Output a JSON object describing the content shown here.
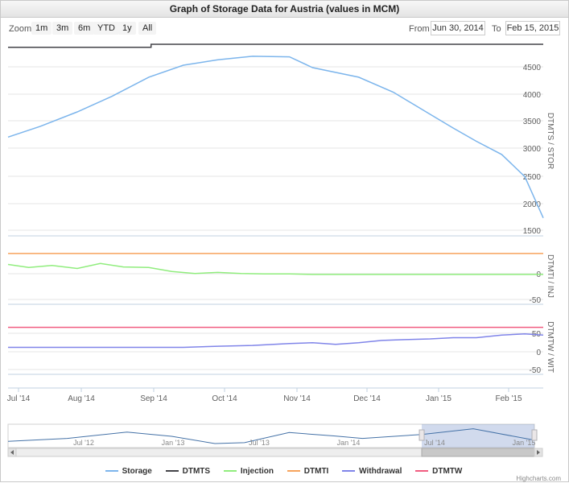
{
  "title": "Graph of Storage Data for Austria (values in MCM)",
  "zoom": {
    "label": "Zoom",
    "buttons": [
      "1m",
      "3m",
      "6m",
      "YTD",
      "1y",
      "All"
    ]
  },
  "range": {
    "from_label": "From",
    "from_value": "Jun 30, 2014",
    "to_label": "To",
    "to_value": "Feb 15, 2015"
  },
  "credits": "Highcharts.com",
  "colors": {
    "storage": "#7cb5ec",
    "dtmts": "#434348",
    "injection": "#90ed7d",
    "dtmti": "#f7a35c",
    "withdrawal": "#8085e9",
    "dtmtw": "#f15c80"
  },
  "chart_data": {
    "type": "line",
    "x_axis": {
      "ticks": [
        "Jul '14",
        "Aug '14",
        "Sep '14",
        "Oct '14",
        "Nov '14",
        "Dec '14",
        "Jan '15",
        "Feb '15"
      ],
      "range": [
        "2014-07-01",
        "2015-02-18"
      ]
    },
    "panes": [
      {
        "axis_label": "DTMTS / STOR",
        "ylim": [
          1500,
          4700
        ],
        "ticks": [
          "1500",
          "2000",
          "2500",
          "3000",
          "3500",
          "4000",
          "4500"
        ],
        "series": [
          {
            "name": "Storage",
            "color": "#7cb5ec",
            "points": [
              [
                "2014-07-01",
                3150
              ],
              [
                "2014-07-15",
                3330
              ],
              [
                "2014-07-31",
                3570
              ],
              [
                "2014-08-15",
                3830
              ],
              [
                "2014-08-31",
                4150
              ],
              [
                "2014-09-15",
                4350
              ],
              [
                "2014-09-30",
                4440
              ],
              [
                "2014-10-15",
                4500
              ],
              [
                "2014-10-31",
                4490
              ],
              [
                "2014-11-10",
                4310
              ],
              [
                "2014-11-30",
                4150
              ],
              [
                "2014-12-15",
                3900
              ],
              [
                "2014-12-31",
                3530
              ],
              [
                "2015-01-10",
                3300
              ],
              [
                "2015-01-20",
                3080
              ],
              [
                "2015-01-31",
                2860
              ],
              [
                "2015-02-10",
                2490
              ],
              [
                "2015-02-18",
                1800
              ]
            ]
          },
          {
            "name": "DTMTS",
            "color": "#434348",
            "points": [
              [
                "2014-07-01",
                4650
              ],
              [
                "2014-09-01",
                4650
              ],
              [
                "2014-09-01",
                4700
              ],
              [
                "2015-02-18",
                4700
              ]
            ]
          }
        ]
      },
      {
        "axis_label": "DTMTI / INJ",
        "ylim": [
          -60,
          50
        ],
        "ticks": [
          "-50",
          "0"
        ],
        "series": [
          {
            "name": "Injection",
            "color": "#90ed7d",
            "points": [
              [
                "2014-07-01",
                20
              ],
              [
                "2014-07-10",
                14
              ],
              [
                "2014-07-20",
                18
              ],
              [
                "2014-07-31",
                12
              ],
              [
                "2014-08-10",
                22
              ],
              [
                "2014-08-20",
                15
              ],
              [
                "2014-08-31",
                14
              ],
              [
                "2014-09-10",
                6
              ],
              [
                "2014-09-20",
                2
              ],
              [
                "2014-09-30",
                4
              ],
              [
                "2014-10-10",
                2
              ],
              [
                "2014-10-20",
                1
              ],
              [
                "2014-10-31",
                1
              ],
              [
                "2014-11-10",
                0
              ],
              [
                "2014-11-30",
                0
              ],
              [
                "2014-12-31",
                0
              ],
              [
                "2015-01-31",
                0
              ],
              [
                "2015-02-10",
                0
              ],
              [
                "2015-02-18",
                0
              ]
            ]
          },
          {
            "name": "DTMTI",
            "color": "#f7a35c",
            "points": [
              [
                "2014-07-01",
                42
              ],
              [
                "2015-02-18",
                42
              ]
            ]
          }
        ]
      },
      {
        "axis_label": "DTMTW / WIT",
        "ylim": [
          -70,
          70
        ],
        "ticks": [
          "-50",
          "0",
          "50"
        ],
        "series": [
          {
            "name": "Withdrawal",
            "color": "#8085e9",
            "points": [
              [
                "2014-07-01",
                0
              ],
              [
                "2014-08-15",
                0
              ],
              [
                "2014-09-15",
                0
              ],
              [
                "2014-09-30",
                3
              ],
              [
                "2014-10-15",
                5
              ],
              [
                "2014-10-31",
                10
              ],
              [
                "2014-11-10",
                12
              ],
              [
                "2014-11-20",
                8
              ],
              [
                "2014-11-30",
                12
              ],
              [
                "2014-12-10",
                18
              ],
              [
                "2014-12-20",
                20
              ],
              [
                "2014-12-31",
                22
              ],
              [
                "2015-01-10",
                25
              ],
              [
                "2015-01-20",
                25
              ],
              [
                "2015-01-31",
                32
              ],
              [
                "2015-02-10",
                35
              ],
              [
                "2015-02-18",
                32
              ]
            ]
          },
          {
            "name": "DTMTW",
            "color": "#f15c80",
            "points": [
              [
                "2014-07-01",
                52
              ],
              [
                "2015-02-18",
                52
              ]
            ]
          }
        ]
      }
    ],
    "navigator": {
      "ticks": [
        "Jul '12",
        "Jan '13",
        "Jul '13",
        "Jan '14",
        "Jul '14",
        "Jan '15"
      ],
      "range": [
        "2012-03-01",
        "2015-02-18"
      ],
      "selected": [
        "2014-07-01",
        "2015-02-18"
      ],
      "points": [
        [
          "2012-03-01",
          1500
        ],
        [
          "2012-07-01",
          2200
        ],
        [
          "2012-11-01",
          3700
        ],
        [
          "2013-02-01",
          2700
        ],
        [
          "2013-05-01",
          1000
        ],
        [
          "2013-07-01",
          1200
        ],
        [
          "2013-10-01",
          3600
        ],
        [
          "2014-01-01",
          2800
        ],
        [
          "2014-03-01",
          2200
        ],
        [
          "2014-07-01",
          3150
        ],
        [
          "2014-10-15",
          4500
        ],
        [
          "2015-02-18",
          1800
        ]
      ]
    },
    "legend": [
      "Storage",
      "DTMTS",
      "Injection",
      "DTMTI",
      "Withdrawal",
      "DTMTW"
    ],
    "legend_position": "bottom"
  }
}
